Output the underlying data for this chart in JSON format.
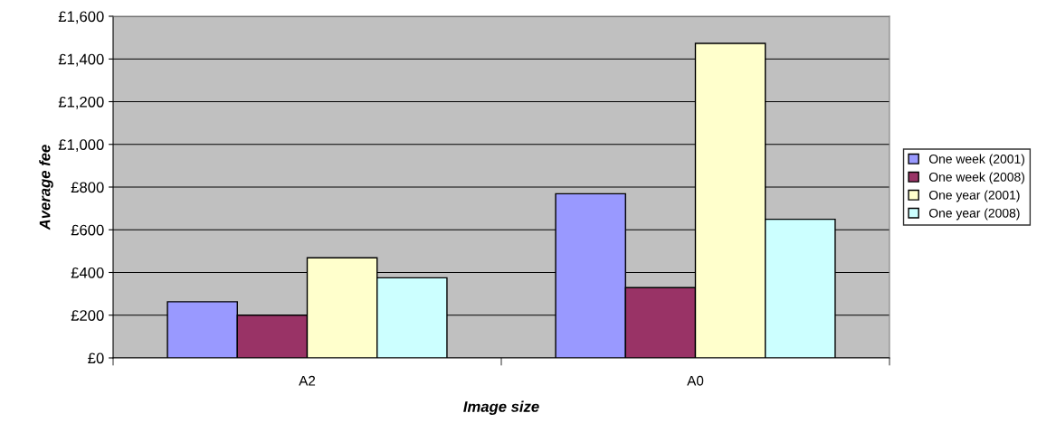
{
  "chart_data": {
    "type": "bar",
    "xlabel": "Image size",
    "ylabel": "Average fee",
    "categories": [
      "A2",
      "A0"
    ],
    "series": [
      {
        "name": "One week (2001)",
        "color": "#9999ff",
        "values": [
          263,
          769
        ]
      },
      {
        "name": "One week (2008)",
        "color": "#993366",
        "values": [
          200,
          329
        ]
      },
      {
        "name": "One year (2001)",
        "color": "#ffffcc",
        "values": [
          469,
          1473
        ]
      },
      {
        "name": "One year (2008)",
        "color": "#ccffff",
        "values": [
          375,
          649
        ]
      }
    ],
    "ylim": [
      0,
      1600
    ],
    "yticks": [
      {
        "value": 0,
        "label": "£0"
      },
      {
        "value": 200,
        "label": "£200"
      },
      {
        "value": 400,
        "label": "£400"
      },
      {
        "value": 600,
        "label": "£600"
      },
      {
        "value": 800,
        "label": "£800"
      },
      {
        "value": 1000,
        "label": "£1,000"
      },
      {
        "value": 1200,
        "label": "£1,200"
      },
      {
        "value": 1400,
        "label": "£1,400"
      },
      {
        "value": 1600,
        "label": "£1,600"
      }
    ],
    "grid": "y",
    "legend": "right"
  }
}
